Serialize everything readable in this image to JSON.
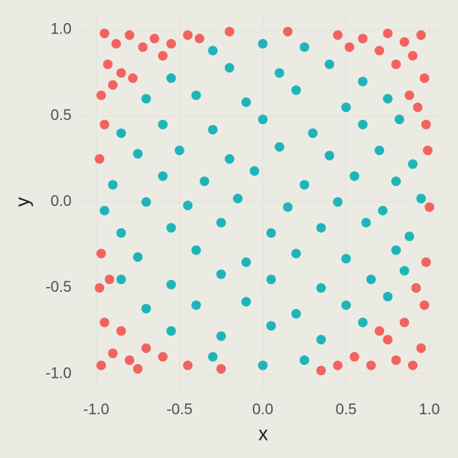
{
  "chart_data": {
    "type": "scatter",
    "xlabel": "x",
    "ylabel": "y",
    "xlim": [
      -1.1,
      1.1
    ],
    "ylim": [
      -1.1,
      1.1
    ],
    "xticks": [
      {
        "value": -1,
        "label": "-1.0"
      },
      {
        "value": -0.5,
        "label": "-0.5"
      },
      {
        "value": 0,
        "label": "0.0"
      },
      {
        "value": 0.5,
        "label": "0.5"
      },
      {
        "value": 1,
        "label": "1.0"
      }
    ],
    "yticks": [
      {
        "value": -1,
        "label": "-1.0"
      },
      {
        "value": -0.5,
        "label": "-0.5"
      },
      {
        "value": 0,
        "label": "0.0"
      },
      {
        "value": 0.5,
        "label": "0.5"
      },
      {
        "value": 1,
        "label": "1.0"
      }
    ],
    "grid": true,
    "series": [
      {
        "color": "#f2635f",
        "x": [
          -0.95,
          -0.88,
          -0.8,
          -0.72,
          -0.93,
          -0.85,
          -0.97,
          -0.9,
          -0.78,
          -0.65,
          -0.55,
          -0.45,
          -0.6,
          -0.38,
          -0.98,
          -0.95,
          0.45,
          0.52,
          0.6,
          0.75,
          0.85,
          0.95,
          0.9,
          0.8,
          0.97,
          0.88,
          0.7,
          0.98,
          0.93,
          0.99,
          0.15,
          -0.2,
          -0.97,
          -0.9,
          -0.85,
          -0.95,
          -0.8,
          -0.7,
          -0.75,
          -0.6,
          -0.98,
          -0.92,
          -0.97,
          -0.45,
          -0.25,
          0.35,
          0.45,
          0.55,
          0.65,
          0.75,
          0.85,
          0.95,
          0.9,
          0.8,
          0.97,
          0.92,
          0.98,
          0.7,
          1.0
        ],
        "y": [
          0.98,
          0.92,
          0.97,
          0.9,
          0.8,
          0.75,
          0.62,
          0.68,
          0.72,
          0.95,
          0.92,
          0.97,
          0.85,
          0.95,
          0.25,
          0.45,
          0.97,
          0.9,
          0.95,
          0.98,
          0.93,
          0.97,
          0.85,
          0.8,
          0.72,
          0.62,
          0.88,
          0.45,
          0.55,
          0.3,
          0.99,
          0.99,
          -0.95,
          -0.88,
          -0.75,
          -0.7,
          -0.92,
          -0.85,
          -0.97,
          -0.9,
          -0.5,
          -0.45,
          -0.3,
          -0.95,
          -0.97,
          -0.98,
          -0.95,
          -0.9,
          -0.95,
          -0.8,
          -0.7,
          -0.85,
          -0.95,
          -0.92,
          -0.6,
          -0.5,
          -0.35,
          -0.75,
          -0.03
        ]
      },
      {
        "color": "#1fb5b8",
        "x": [
          -0.3,
          0,
          0.25,
          -0.55,
          -0.2,
          0.1,
          0.4,
          0.6,
          -0.7,
          -0.4,
          -0.1,
          0.2,
          0.5,
          0.75,
          -0.85,
          -0.6,
          -0.3,
          0,
          0.3,
          0.6,
          0.82,
          -0.75,
          -0.5,
          -0.2,
          0.1,
          0.4,
          0.7,
          0.9,
          -0.9,
          -0.6,
          -0.35,
          -0.05,
          0.25,
          0.55,
          0.8,
          -0.95,
          -0.7,
          -0.45,
          -0.15,
          0.15,
          0.45,
          0.72,
          0.95,
          -0.85,
          -0.55,
          -0.25,
          0.05,
          0.35,
          0.62,
          0.88,
          -0.75,
          -0.4,
          -0.1,
          0.2,
          0.5,
          0.8,
          -0.85,
          -0.55,
          -0.25,
          0.05,
          0.35,
          0.65,
          0.85,
          -0.7,
          -0.4,
          -0.1,
          0.2,
          0.5,
          0.75,
          -0.55,
          -0.25,
          0.05,
          0.35,
          0.6,
          -0.3,
          0,
          0.25
        ],
        "y": [
          0.88,
          0.92,
          0.9,
          0.72,
          0.78,
          0.75,
          0.8,
          0.7,
          0.6,
          0.62,
          0.58,
          0.65,
          0.55,
          0.6,
          0.4,
          0.45,
          0.42,
          0.48,
          0.4,
          0.45,
          0.48,
          0.28,
          0.3,
          0.25,
          0.32,
          0.27,
          0.3,
          0.22,
          0.1,
          0.15,
          0.12,
          0.18,
          0.1,
          0.15,
          0.12,
          -0.05,
          0,
          -0.02,
          0.02,
          -0.03,
          0,
          -0.05,
          0.02,
          -0.18,
          -0.15,
          -0.12,
          -0.18,
          -0.15,
          -0.12,
          -0.2,
          -0.32,
          -0.28,
          -0.35,
          -0.3,
          -0.33,
          -0.28,
          -0.45,
          -0.48,
          -0.42,
          -0.45,
          -0.5,
          -0.45,
          -0.4,
          -0.62,
          -0.6,
          -0.58,
          -0.65,
          -0.6,
          -0.55,
          -0.75,
          -0.78,
          -0.72,
          -0.8,
          -0.7,
          -0.9,
          -0.95,
          -0.92
        ]
      }
    ]
  }
}
